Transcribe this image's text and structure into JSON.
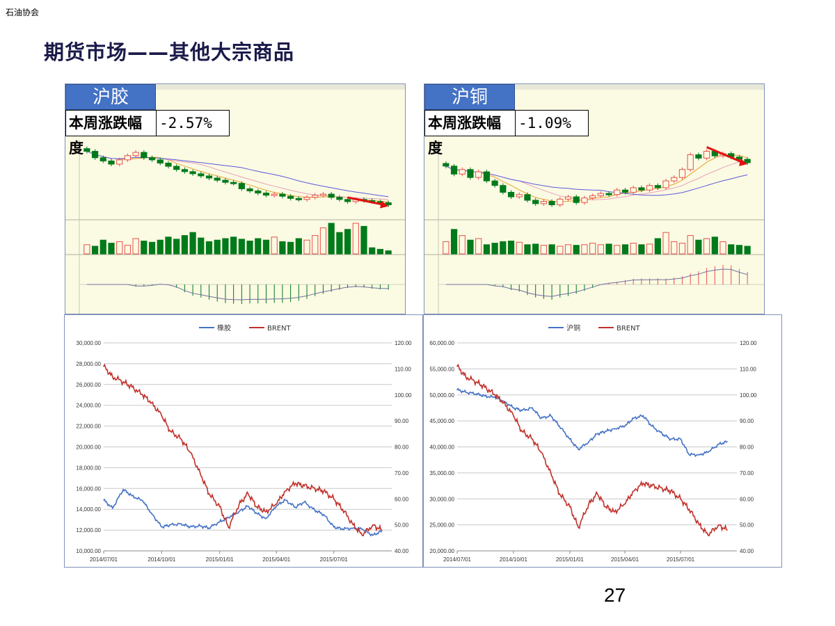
{
  "header": {
    "org": "石油协会",
    "title": "期货市场——其他大宗商品",
    "page_number": "27"
  },
  "colors": {
    "up": "#e8504a",
    "down": "#007a1a",
    "brent": "#c0302a",
    "blue": "#4472c4",
    "ma_blue": "#5a5adc",
    "ma_pink": "#e9a0b8",
    "ma_orange": "#e8a030"
  },
  "panels": [
    {
      "name": "沪胶",
      "change_label": "本周涨跌幅度",
      "change_value": "-2.57%"
    },
    {
      "name": "沪铜",
      "change_label": "本周涨跌幅度",
      "change_value": "-1.09%"
    }
  ],
  "chart_data": [
    {
      "type": "line",
      "series": [
        {
          "name": "橡胶",
          "axis": "left",
          "x": [
            "2014/07/01",
            "2014/07/15",
            "2014/08/01",
            "2014/08/15",
            "2014/09/01",
            "2014/09/15",
            "2014/10/01",
            "2014/10/15",
            "2014/11/01",
            "2014/11/15",
            "2014/12/01",
            "2014/12/15",
            "2015/01/01",
            "2015/01/15",
            "2015/02/01",
            "2015/02/15",
            "2015/03/01",
            "2015/03/15",
            "2015/04/01",
            "2015/04/15",
            "2015/05/01",
            "2015/05/15",
            "2015/06/01",
            "2015/06/15",
            "2015/07/01",
            "2015/07/15",
            "2015/08/01",
            "2015/08/15",
            "2015/09/01",
            "2015/09/15"
          ],
          "values": [
            14900,
            14100,
            15900,
            15300,
            14800,
            13600,
            12300,
            12500,
            12600,
            12300,
            12400,
            12200,
            12800,
            13200,
            13800,
            14300,
            13600,
            13100,
            14300,
            14900,
            14200,
            14700,
            13900,
            13500,
            12300,
            12100,
            12200,
            12100,
            11500,
            11900
          ]
        },
        {
          "name": "BRENT",
          "axis": "right",
          "x": [
            "2014/07/01",
            "2014/07/15",
            "2014/08/01",
            "2014/08/15",
            "2014/09/01",
            "2014/09/15",
            "2014/10/01",
            "2014/10/15",
            "2014/11/01",
            "2014/11/15",
            "2014/12/01",
            "2014/12/15",
            "2015/01/01",
            "2015/01/15",
            "2015/02/01",
            "2015/02/15",
            "2015/03/01",
            "2015/03/15",
            "2015/04/01",
            "2015/04/15",
            "2015/05/01",
            "2015/05/15",
            "2015/06/01",
            "2015/06/15",
            "2015/07/01",
            "2015/07/15",
            "2015/08/01",
            "2015/08/15",
            "2015/09/01",
            "2015/09/15"
          ],
          "values": [
            111,
            107,
            105,
            103,
            100,
            97,
            92,
            86,
            83,
            78,
            70,
            62,
            57,
            49,
            58,
            62,
            57,
            55,
            58,
            63,
            66,
            65,
            64,
            63,
            60,
            56,
            50,
            46,
            50,
            48
          ]
        }
      ],
      "ylim_left": [
        10000,
        30000
      ],
      "ylim_right": [
        40,
        120
      ],
      "yticks_left": [
        "10,000.00",
        "12,000.00",
        "14,000.00",
        "16,000.00",
        "18,000.00",
        "20,000.00",
        "22,000.00",
        "24,000.00",
        "26,000.00",
        "28,000.00",
        "30,000.00"
      ],
      "yticks_right": [
        "40.00",
        "50.00",
        "60.00",
        "70.00",
        "80.00",
        "90.00",
        "100.00",
        "110.00",
        "120.00"
      ],
      "xticks": [
        "2014/07/01",
        "2014/10/01",
        "2015/01/01",
        "2015/04/01",
        "2015/07/01"
      ],
      "legend": "top-center",
      "grid": true
    },
    {
      "type": "line",
      "series": [
        {
          "name": "沪铜",
          "axis": "left",
          "x": [
            "2014/07/01",
            "2014/07/15",
            "2014/08/01",
            "2014/08/15",
            "2014/09/01",
            "2014/09/15",
            "2014/10/01",
            "2014/10/15",
            "2014/11/01",
            "2014/11/15",
            "2014/12/01",
            "2014/12/15",
            "2015/01/01",
            "2015/01/15",
            "2015/02/01",
            "2015/02/15",
            "2015/03/01",
            "2015/03/15",
            "2015/04/01",
            "2015/04/15",
            "2015/05/01",
            "2015/05/15",
            "2015/06/01",
            "2015/06/15",
            "2015/07/01",
            "2015/07/15",
            "2015/08/01",
            "2015/08/15",
            "2015/09/01",
            "2015/09/15"
          ],
          "values": [
            51000,
            50500,
            50200,
            49800,
            49500,
            48800,
            47500,
            47000,
            47500,
            45500,
            46000,
            44000,
            41500,
            39500,
            41000,
            42500,
            43000,
            43500,
            44000,
            45500,
            46000,
            44000,
            42500,
            41500,
            41500,
            38500,
            38500,
            39000,
            40500,
            41000
          ]
        },
        {
          "name": "BRENT",
          "axis": "right",
          "x": [
            "2014/07/01",
            "2014/07/15",
            "2014/08/01",
            "2014/08/15",
            "2014/09/01",
            "2014/09/15",
            "2014/10/01",
            "2014/10/15",
            "2014/11/01",
            "2014/11/15",
            "2014/12/01",
            "2014/12/15",
            "2015/01/01",
            "2015/01/15",
            "2015/02/01",
            "2015/02/15",
            "2015/03/01",
            "2015/03/15",
            "2015/04/01",
            "2015/04/15",
            "2015/05/01",
            "2015/05/15",
            "2015/06/01",
            "2015/06/15",
            "2015/07/01",
            "2015/07/15",
            "2015/08/01",
            "2015/08/15",
            "2015/09/01",
            "2015/09/15"
          ],
          "values": [
            111,
            107,
            105,
            103,
            100,
            97,
            92,
            86,
            83,
            78,
            70,
            62,
            57,
            49,
            58,
            62,
            57,
            55,
            58,
            63,
            66,
            65,
            64,
            63,
            60,
            56,
            50,
            46,
            50,
            48
          ]
        }
      ],
      "ylim_left": [
        20000,
        60000
      ],
      "ylim_right": [
        40,
        120
      ],
      "yticks_left": [
        "20,000.00",
        "25,000.00",
        "30,000.00",
        "35,000.00",
        "40,000.00",
        "45,000.00",
        "50,000.00",
        "55,000.00",
        "60,000.00"
      ],
      "yticks_right": [
        "40.00",
        "50.00",
        "60.00",
        "70.00",
        "80.00",
        "90.00",
        "100.00",
        "110.00",
        "120.00"
      ],
      "xticks": [
        "2014/07/01",
        "2014/10/01",
        "2015/01/01",
        "2015/04/01",
        "2015/07/01"
      ],
      "legend": "top-center",
      "grid": true
    }
  ],
  "kline_data": [
    {
      "close": [
        18000,
        17400,
        17100,
        16800,
        17200,
        17600,
        17900,
        17400,
        17200,
        16900,
        16600,
        16300,
        16100,
        15900,
        15700,
        15500,
        15300,
        15100,
        15000,
        14500,
        14300,
        14100,
        13900,
        14000,
        13800,
        13600,
        13500,
        13700,
        13900,
        14000,
        13700,
        13500,
        13300,
        13500,
        13400,
        13300,
        13200,
        13000
      ],
      "volume": [
        0.3,
        0.25,
        0.45,
        0.35,
        0.4,
        0.28,
        0.5,
        0.42,
        0.38,
        0.45,
        0.55,
        0.48,
        0.6,
        0.7,
        0.52,
        0.4,
        0.45,
        0.5,
        0.55,
        0.48,
        0.42,
        0.5,
        0.45,
        0.55,
        0.4,
        0.38,
        0.5,
        0.45,
        0.6,
        0.85,
        1.0,
        0.7,
        0.8,
        1.0,
        0.9,
        0.2,
        0.15,
        0.1
      ]
    },
    {
      "close": [
        47500,
        46800,
        47200,
        46500,
        47000,
        46200,
        45800,
        45200,
        44800,
        45000,
        44500,
        44200,
        44400,
        44100,
        44600,
        44800,
        44300,
        44700,
        44900,
        45100,
        45000,
        45400,
        45200,
        45600,
        45400,
        45800,
        45600,
        46200,
        46500,
        47200,
        48500,
        48200,
        48800,
        48400,
        48600,
        48300,
        48100,
        47800
      ],
      "volume": [
        0.4,
        0.8,
        0.6,
        0.45,
        0.5,
        0.3,
        0.35,
        0.4,
        0.42,
        0.38,
        0.3,
        0.32,
        0.28,
        0.3,
        0.25,
        0.3,
        0.28,
        0.3,
        0.35,
        0.3,
        0.32,
        0.28,
        0.3,
        0.35,
        0.3,
        0.32,
        0.5,
        0.7,
        0.4,
        0.35,
        0.6,
        0.45,
        0.5,
        0.55,
        0.4,
        0.3,
        0.28,
        0.25
      ]
    }
  ]
}
